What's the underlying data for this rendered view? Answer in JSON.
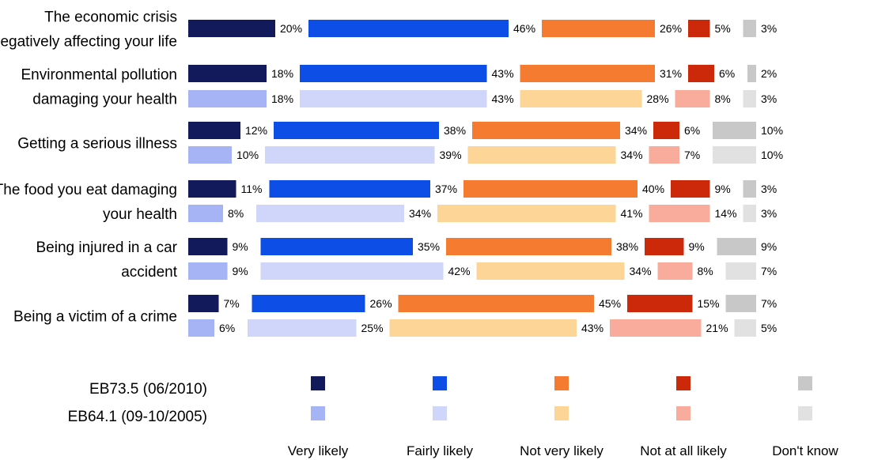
{
  "chart_data": {
    "type": "bar",
    "stacked": true,
    "orientation": "horizontal",
    "series_names": [
      "EB73.5 (06/2010)",
      "EB64.1 (09-10/2005)"
    ],
    "answer_categories": [
      "Very likely",
      "Fairly likely",
      "Not very likely",
      "Not at all likely",
      "Don't know"
    ],
    "colors": {
      "EB73.5 (06/2010)": [
        "#131a5c",
        "#0d4ee6",
        "#f47b30",
        "#cc290b",
        "#c8c8c8"
      ],
      "EB64.1 (09-10/2005)": [
        "#a6b4f6",
        "#cfd6fa",
        "#fdd597",
        "#f9ac9b",
        "#e1e1e1"
      ]
    },
    "items": [
      {
        "label": [
          "The economic crisis",
          "negatively affecting your life"
        ],
        "rows": [
          {
            "series": "EB73.5 (06/2010)",
            "values": [
              20,
              46,
              26,
              5,
              3
            ],
            "labels": [
              "20%",
              "46%",
              "26%",
              "5%",
              "3%"
            ]
          }
        ]
      },
      {
        "label": [
          "Environmental pollution",
          "damaging your health"
        ],
        "rows": [
          {
            "series": "EB73.5 (06/2010)",
            "values": [
              18,
              43,
              31,
              6,
              2
            ],
            "labels": [
              "18%",
              "43%",
              "31%",
              "6%",
              "2%"
            ]
          },
          {
            "series": "EB64.1 (09-10/2005)",
            "values": [
              18,
              43,
              28,
              8,
              3
            ],
            "labels": [
              "18%",
              "43%",
              "28%",
              "8%",
              "3%"
            ]
          }
        ]
      },
      {
        "label": [
          "Getting a serious illness"
        ],
        "rows": [
          {
            "series": "EB73.5 (06/2010)",
            "values": [
              12,
              38,
              34,
              6,
              10
            ],
            "labels": [
              "12%",
              "38%",
              "34%",
              "6%",
              "10%"
            ]
          },
          {
            "series": "EB64.1 (09-10/2005)",
            "values": [
              10,
              39,
              34,
              7,
              10
            ],
            "labels": [
              "10%",
              "39%",
              "34%",
              "7%",
              "10%"
            ]
          }
        ]
      },
      {
        "label": [
          "The food you eat damaging",
          "your health"
        ],
        "rows": [
          {
            "series": "EB73.5 (06/2010)",
            "values": [
              11,
              37,
              40,
              9,
              3
            ],
            "labels": [
              "11%",
              "37%",
              "40%",
              "9%",
              "3%"
            ]
          },
          {
            "series": "EB64.1 (09-10/2005)",
            "values": [
              8,
              34,
              41,
              14,
              3
            ],
            "labels": [
              "8%",
              "34%",
              "41%",
              "14%",
              "3%"
            ]
          }
        ]
      },
      {
        "label": [
          "Being injured in a car",
          "accident"
        ],
        "rows": [
          {
            "series": "EB73.5 (06/2010)",
            "values": [
              9,
              35,
              38,
              9,
              9
            ],
            "labels": [
              "9%",
              "35%",
              "38%",
              "9%",
              "9%"
            ]
          },
          {
            "series": "EB64.1 (09-10/2005)",
            "values": [
              9,
              42,
              34,
              8,
              7
            ],
            "labels": [
              "9%",
              "42%",
              "34%",
              "8%",
              "7%"
            ]
          }
        ]
      },
      {
        "label": [
          "Being a victim of a crime"
        ],
        "rows": [
          {
            "series": "EB73.5 (06/2010)",
            "values": [
              7,
              26,
              45,
              15,
              7
            ],
            "labels": [
              "7%",
              "26%",
              "45%",
              "15%",
              "7%"
            ]
          },
          {
            "series": "EB64.1 (09-10/2005)",
            "values": [
              6,
              25,
              43,
              21,
              5
            ],
            "labels": [
              "6%",
              "25%",
              "43%",
              "21%",
              "5%"
            ]
          }
        ]
      }
    ]
  }
}
